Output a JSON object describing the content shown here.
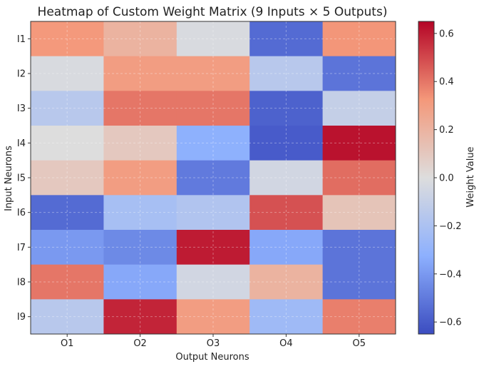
{
  "chart_data": {
    "type": "heatmap",
    "title": "Heatmap of Custom Weight Matrix (9 Inputs × 5 Outputs)",
    "xlabel": "Output Neurons",
    "ylabel": "Input Neurons",
    "x_categories": [
      "O1",
      "O2",
      "O3",
      "O4",
      "O5"
    ],
    "y_categories": [
      "I1",
      "I2",
      "I3",
      "I4",
      "I5",
      "I6",
      "I7",
      "I8",
      "I9"
    ],
    "values": [
      [
        0.32,
        0.2,
        -0.02,
        -0.55,
        0.33
      ],
      [
        -0.02,
        0.3,
        0.3,
        -0.15,
        -0.52
      ],
      [
        -0.15,
        0.4,
        0.4,
        -0.58,
        -0.1
      ],
      [
        0.0,
        0.1,
        -0.32,
        -0.6,
        0.62
      ],
      [
        0.1,
        0.3,
        -0.5,
        -0.05,
        0.42
      ],
      [
        -0.55,
        -0.22,
        -0.18,
        0.48,
        0.12
      ],
      [
        -0.4,
        -0.45,
        0.6,
        -0.35,
        -0.52
      ],
      [
        0.4,
        -0.35,
        -0.05,
        0.2,
        -0.52
      ],
      [
        -0.15,
        0.58,
        0.3,
        -0.25,
        0.38
      ]
    ],
    "colormap": "coolwarm",
    "vmin": -0.65,
    "vmax": 0.65,
    "colorbar": {
      "label": "Weight Value",
      "ticks": [
        -0.6,
        -0.4,
        -0.2,
        0.0,
        0.2,
        0.4,
        0.6
      ],
      "tick_labels": [
        "−0.6",
        "−0.4",
        "−0.2",
        "0.0",
        "0.2",
        "0.4",
        "0.6"
      ]
    },
    "grid": true
  }
}
